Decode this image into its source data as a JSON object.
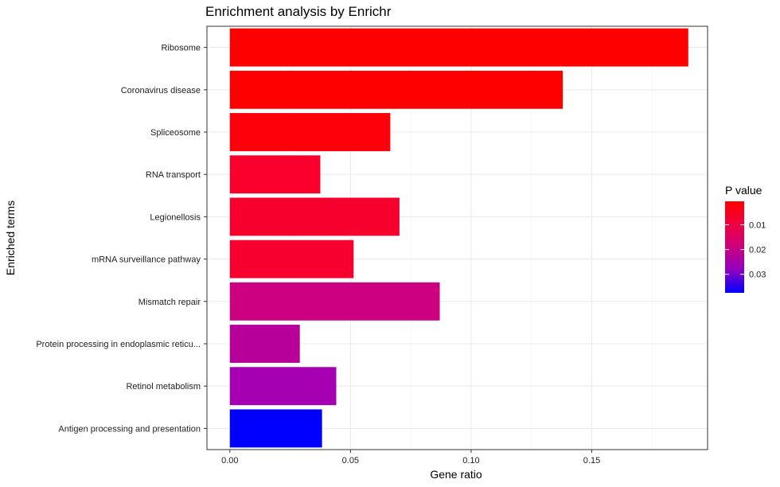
{
  "chart_data": {
    "type": "bar",
    "orientation": "horizontal",
    "title": "Enrichment analysis by Enrichr",
    "xlabel": "Gene ratio",
    "ylabel": "Enriched terms",
    "xlim": [
      -0.0095,
      0.198
    ],
    "xticks": [
      0,
      0.05,
      0.1,
      0.15
    ],
    "xtick_labels": [
      "0.00",
      "0.05",
      "0.10",
      "0.15"
    ],
    "grid": true,
    "categories": [
      "Ribosome",
      "Coronavirus disease",
      "Spliceosome",
      "RNA transport",
      "Legionellosis",
      "mRNA surveillance pathway",
      "Mismatch repair",
      "Protein processing in endoplasmic reticu...",
      "Retinol metabolism",
      "Antigen processing and presentation"
    ],
    "values": [
      0.19,
      0.138,
      0.0665,
      0.0375,
      0.0703,
      0.0513,
      0.087,
      0.029,
      0.0441,
      0.0382
    ],
    "p_values": [
      0.0005,
      0.0006,
      0.0007,
      0.0025,
      0.003,
      0.0035,
      0.0125,
      0.0185,
      0.0215,
      0.0375
    ],
    "bar_colors": [
      "#ff0000",
      "#ff0000",
      "#fe0009",
      "#f9002d",
      "#f8002e",
      "#f7002f",
      "#cc0080",
      "#b60099",
      "#a600b3",
      "#0000ff"
    ],
    "legend": {
      "title": "P value",
      "placement": "right",
      "ticks": [
        0.01,
        0.02,
        0.03
      ],
      "tick_labels": [
        "0.01",
        "0.02",
        "0.03"
      ],
      "range": [
        0.0005,
        0.0375
      ],
      "color_low": "#ff0000",
      "color_high": "#0000ff"
    }
  }
}
